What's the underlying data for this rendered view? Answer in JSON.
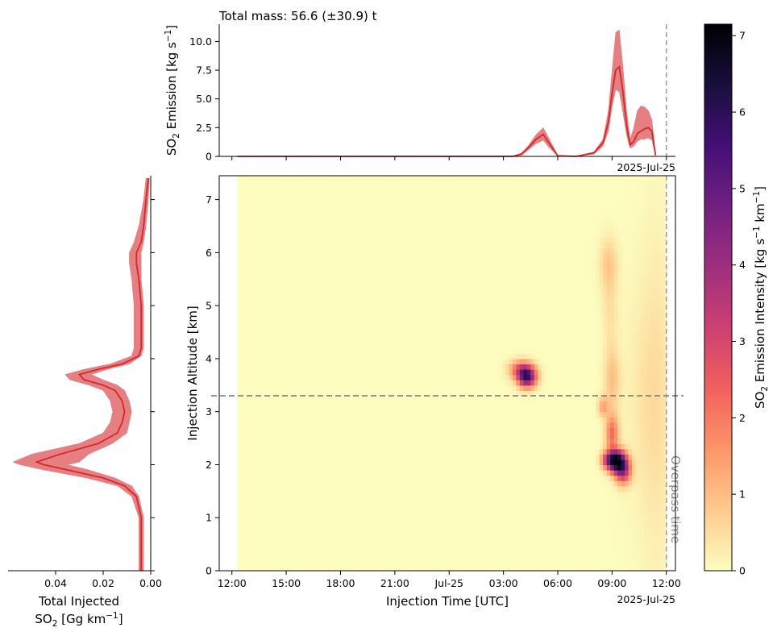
{
  "chart_data": [
    {
      "type": "area",
      "panel": "top",
      "title": "Total mass: 56.6 (±30.9) t",
      "ylabel": "SO",
      "ylabel_sub": "2",
      "ylabel_rest": " Emission [kg s",
      "ylabel_sup": "−1",
      "ylabel_end": "]",
      "ylim": [
        0,
        11.5
      ],
      "yticks": [
        0,
        2.5,
        5.0,
        7.5,
        10.0
      ],
      "ytick_labels": [
        "0",
        "2.5",
        "5.0",
        "7.5",
        "10.0"
      ],
      "x_corner_label": "2025-Jul-25",
      "x_hours": [
        0.3,
        5,
        10,
        14,
        15.5,
        16,
        16.4,
        16.8,
        17.2,
        17.5,
        18,
        19,
        20,
        20.5,
        20.8,
        21.0,
        21.2,
        21.4,
        21.6,
        21.8,
        22.0,
        22.2,
        22.4,
        22.6,
        22.8,
        23.0,
        23.2,
        23.4
      ],
      "series": [
        {
          "mean": [
            0,
            0,
            0,
            0,
            0,
            0.2,
            0.8,
            1.5,
            1.9,
            1.2,
            0.05,
            0,
            0.3,
            1.2,
            3.0,
            5.5,
            7.5,
            7.8,
            5.6,
            2.7,
            1.0,
            1.3,
            2.0,
            2.2,
            2.4,
            2.5,
            2.2,
            0.1
          ],
          "lower": [
            0,
            0,
            0,
            0,
            0,
            0.1,
            0.6,
            1.1,
            1.4,
            0.8,
            0.02,
            0,
            0.2,
            0.9,
            2.2,
            4.3,
            5.8,
            5.6,
            3.8,
            1.8,
            0.7,
            0.9,
            1.3,
            1.5,
            1.5,
            1.6,
            1.4,
            0.05
          ],
          "upper": [
            0,
            0,
            0,
            0,
            0,
            0.3,
            1.0,
            1.9,
            2.5,
            1.6,
            0.1,
            0,
            0.4,
            1.5,
            4.0,
            7.5,
            10.8,
            11.0,
            7.8,
            4.0,
            1.5,
            2.5,
            4.0,
            4.4,
            4.3,
            4.0,
            3.2,
            0.2
          ]
        }
      ]
    },
    {
      "type": "heatmap",
      "panel": "main",
      "xlabel": "Injection Time [UTC]",
      "ylabel": "Injection Altitude [km]",
      "xlim_hours": [
        -0.7,
        24.5
      ],
      "ylim": [
        0,
        7.45
      ],
      "xticks_hours": [
        0,
        3,
        6,
        9,
        12,
        15,
        18,
        21,
        24
      ],
      "xtick_labels": [
        "12:00",
        "15:00",
        "18:00",
        "21:00",
        "Jul-25",
        "03:00",
        "06:00",
        "09:00",
        "12:00"
      ],
      "yticks": [
        0,
        1,
        2,
        3,
        4,
        5,
        6,
        7
      ],
      "ytick_labels": [
        "0",
        "1",
        "2",
        "3",
        "4",
        "5",
        "6",
        "7"
      ],
      "x_corner_label": "2025-Jul-25",
      "data_start_hours": 0.3,
      "overpass_time_hours": 24.0,
      "overpass_label": "Overpass time",
      "reference_altitude_km": 3.3,
      "colorbar": {
        "label": "SO",
        "label_sub": "2",
        "label_rest": " Emission Intensity [kg s",
        "label_sup1": "−1",
        "label_mid": " km",
        "label_sup2": "−1",
        "label_end": "]",
        "range": [
          0,
          7.15
        ],
        "ticks": [
          0,
          1,
          2,
          3,
          4,
          5,
          6,
          7
        ],
        "tick_labels": [
          "0",
          "1",
          "2",
          "3",
          "4",
          "5",
          "6",
          "7"
        ],
        "colormap": "magma_r",
        "colors": [
          "#fcfdbf",
          "#feca8d",
          "#fd9668",
          "#f1605d",
          "#cd4071",
          "#9e2f7f",
          "#721f81",
          "#440f76",
          "#180f3d",
          "#000004"
        ]
      },
      "blobs": [
        {
          "t": 16.3,
          "z": 3.65,
          "st": 0.35,
          "sz": 0.13,
          "amp": 5.2
        },
        {
          "t": 16.0,
          "z": 3.8,
          "st": 0.45,
          "sz": 0.12,
          "amp": 2.6
        },
        {
          "t": 21.2,
          "z": 2.08,
          "st": 0.35,
          "sz": 0.14,
          "amp": 6.8
        },
        {
          "t": 21.6,
          "z": 1.9,
          "st": 0.3,
          "sz": 0.17,
          "amp": 3.8
        },
        {
          "t": 20.7,
          "z": 2.1,
          "st": 0.25,
          "sz": 0.1,
          "amp": 1.6
        },
        {
          "t": 21.0,
          "z": 2.6,
          "st": 0.25,
          "sz": 0.25,
          "amp": 2.2
        },
        {
          "t": 20.5,
          "z": 3.1,
          "st": 0.2,
          "sz": 0.13,
          "amp": 1.3
        },
        {
          "t": 21.0,
          "z": 3.6,
          "st": 0.3,
          "sz": 0.4,
          "amp": 0.9
        },
        {
          "t": 20.9,
          "z": 4.9,
          "st": 0.3,
          "sz": 0.6,
          "amp": 0.45
        },
        {
          "t": 20.8,
          "z": 5.8,
          "st": 0.35,
          "sz": 0.35,
          "amp": 0.75
        },
        {
          "t": 22.8,
          "z": 3.3,
          "st": 0.9,
          "sz": 1.6,
          "amp": 0.3
        },
        {
          "t": 23.5,
          "z": 3.2,
          "st": 0.6,
          "sz": 2.4,
          "amp": 0.32
        }
      ]
    },
    {
      "type": "area",
      "panel": "left",
      "xlabel_line1": "Total Injected",
      "xlabel_line2a": "SO",
      "xlabel_line2_sub": "2",
      "xlabel_line2b": " [Gg km",
      "xlabel_line2_sup": "−1",
      "xlabel_line2c": "]",
      "xlim_inverted": [
        0.0,
        0.06
      ],
      "xticks": [
        0.04,
        0.02,
        0.0
      ],
      "xtick_labels": [
        "0.04",
        "0.02",
        "0.00"
      ],
      "z": [
        0,
        0.5,
        1.0,
        1.4,
        1.6,
        1.75,
        1.9,
        2.0,
        2.05,
        2.2,
        2.4,
        2.6,
        2.8,
        3.0,
        3.2,
        3.4,
        3.5,
        3.6,
        3.7,
        3.8,
        3.9,
        4.05,
        4.2,
        4.5,
        5.0,
        5.5,
        5.8,
        6.0,
        6.2,
        6.5,
        7.0,
        7.4
      ],
      "series": [
        {
          "mean": [
            0.004,
            0.004,
            0.004,
            0.006,
            0.011,
            0.02,
            0.035,
            0.045,
            0.048,
            0.038,
            0.022,
            0.014,
            0.012,
            0.011,
            0.012,
            0.015,
            0.02,
            0.028,
            0.03,
            0.022,
            0.012,
            0.005,
            0.004,
            0.004,
            0.004,
            0.005,
            0.006,
            0.006,
            0.004,
            0.003,
            0.002,
            0.001
          ],
          "lower": [
            0.003,
            0.003,
            0.003,
            0.005,
            0.008,
            0.015,
            0.026,
            0.035,
            0.03,
            0.026,
            0.016,
            0.01,
            0.009,
            0.008,
            0.009,
            0.011,
            0.014,
            0.02,
            0.025,
            0.018,
            0.009,
            0.004,
            0.003,
            0.003,
            0.003,
            0.004,
            0.004,
            0.004,
            0.003,
            0.002,
            0.001,
            0.0005
          ],
          "upper": [
            0.005,
            0.005,
            0.005,
            0.008,
            0.014,
            0.027,
            0.045,
            0.055,
            0.058,
            0.05,
            0.03,
            0.02,
            0.017,
            0.016,
            0.017,
            0.02,
            0.026,
            0.034,
            0.036,
            0.028,
            0.017,
            0.008,
            0.007,
            0.007,
            0.007,
            0.008,
            0.009,
            0.009,
            0.007,
            0.005,
            0.003,
            0.002
          ]
        }
      ]
    }
  ],
  "colors": {
    "line": "#d62728",
    "band": "#e57f82",
    "guide": "#8a8a8a"
  }
}
